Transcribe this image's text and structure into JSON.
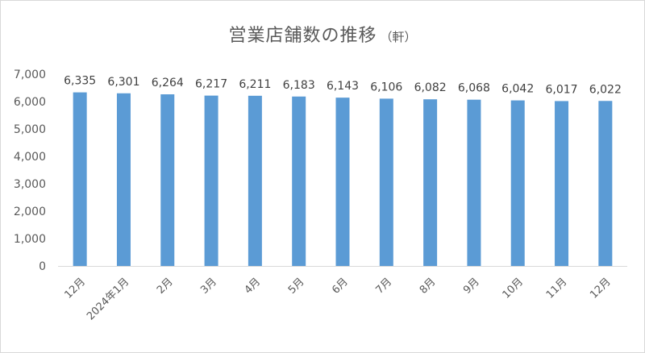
{
  "chart_data": {
    "type": "bar",
    "title": "営業店舗数の推移",
    "unit": "（軒）",
    "categories": [
      "12月",
      "2024年1月",
      "2月",
      "3月",
      "4月",
      "5月",
      "6月",
      "7月",
      "8月",
      "9月",
      "10月",
      "11月",
      "12月"
    ],
    "values": [
      6335,
      6301,
      6264,
      6217,
      6211,
      6183,
      6143,
      6106,
      6082,
      6068,
      6042,
      6017,
      6022
    ],
    "data_labels": [
      "6,335",
      "6,301",
      "6,264",
      "6,217",
      "6,211",
      "6,183",
      "6,143",
      "6,106",
      "6,082",
      "6,068",
      "6,042",
      "6,017",
      "6,022"
    ],
    "ylim": [
      0,
      7000
    ],
    "y_ticks": [
      0,
      1000,
      2000,
      3000,
      4000,
      5000,
      6000,
      7000
    ],
    "y_tick_labels": [
      "0",
      "1,000",
      "2,000",
      "3,000",
      "4,000",
      "5,000",
      "6,000",
      "7,000"
    ],
    "xlabel": "",
    "ylabel": "",
    "grid": false,
    "legend": "none",
    "bar_color": "#5b9bd5"
  }
}
